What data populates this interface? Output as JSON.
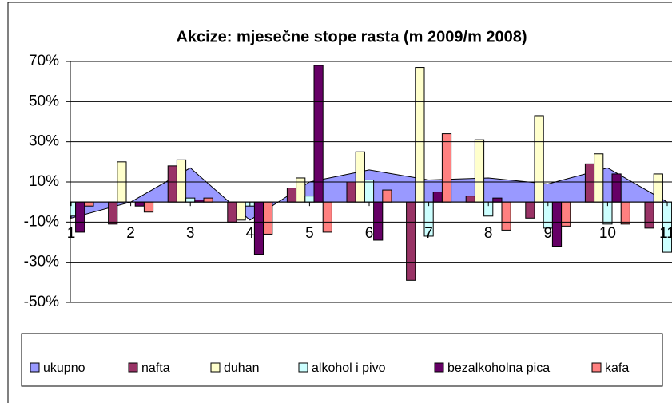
{
  "chart_data": {
    "type": "bar",
    "title": "Akcize: mjesečne stope rasta (m 2009/m 2008)",
    "categories": [
      "1",
      "2",
      "3",
      "4",
      "5",
      "6",
      "7",
      "8",
      "9",
      "10",
      "11"
    ],
    "ylim": [
      -50,
      70
    ],
    "yticks": [
      {
        "value": -50,
        "label": "-50%"
      },
      {
        "value": -30,
        "label": "-30%"
      },
      {
        "value": -10,
        "label": "-10%"
      },
      {
        "value": 10,
        "label": "10%"
      },
      {
        "value": 30,
        "label": "30%"
      },
      {
        "value": 50,
        "label": "50%"
      },
      {
        "value": 70,
        "label": "70%"
      }
    ],
    "grid": true,
    "legend": "bottom",
    "series": [
      {
        "name": "ukupno",
        "type": "area",
        "color": "#9999ff",
        "values": [
          -8,
          0,
          17,
          -9,
          10,
          16,
          11,
          12,
          9,
          17,
          0
        ]
      },
      {
        "name": "nafta",
        "color": "#993366",
        "values": [
          null,
          -11,
          18,
          -10,
          7,
          10,
          -39,
          3,
          -8,
          19,
          -13
        ]
      },
      {
        "name": "duhan",
        "color": "#ffffcc",
        "values": [
          null,
          20,
          21,
          -9,
          12,
          25,
          67,
          31,
          43,
          24,
          14
        ]
      },
      {
        "name": "alkohol i pivo",
        "color": "#ccffff",
        "values": [
          -7,
          0,
          2,
          -2,
          3,
          11,
          -17,
          -7,
          -13,
          -11,
          -25
        ]
      },
      {
        "name": "bezalkoholna pica",
        "color": "#660066",
        "values": [
          -15,
          -2,
          1,
          -26,
          68,
          -19,
          5,
          2,
          -22,
          14,
          null
        ]
      },
      {
        "name": "kafa",
        "color": "#ff8080",
        "values": [
          -2,
          -5,
          2,
          -16,
          -15,
          6,
          34,
          -14,
          -12,
          -11,
          null
        ]
      }
    ]
  }
}
